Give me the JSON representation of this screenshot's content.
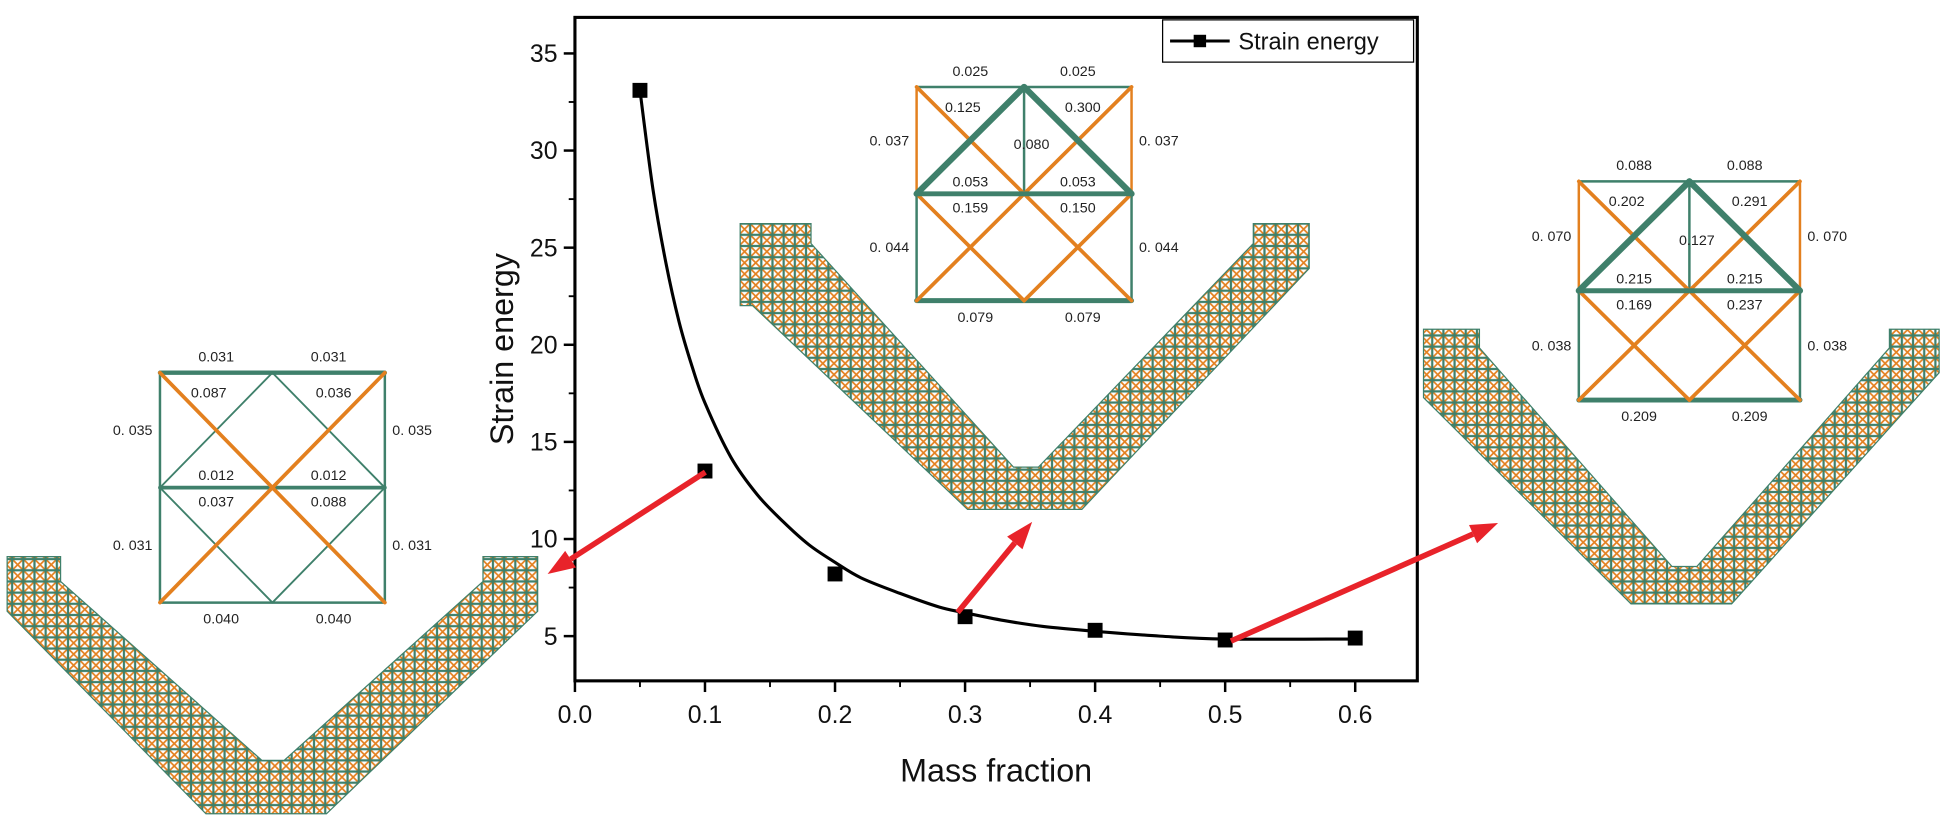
{
  "chart_data": {
    "type": "scatter",
    "title": "",
    "xlabel": "Mass fraction",
    "ylabel": "Strain energy",
    "xlim": [
      0,
      0.648
    ],
    "ylim": [
      2.7,
      36.9
    ],
    "xticks": [
      0.0,
      0.1,
      0.2,
      0.3,
      0.4,
      0.5,
      0.6
    ],
    "xtick_labels": [
      "0.0",
      "0.1",
      "0.2",
      "0.3",
      "0.4",
      "0.5",
      "0.6"
    ],
    "yticks": [
      5,
      10,
      15,
      20,
      25,
      30,
      35
    ],
    "ytick_labels": [
      "5",
      "10",
      "15",
      "20",
      "25",
      "30",
      "35"
    ],
    "grid": false,
    "legend_position": "top-right",
    "series": [
      {
        "name": "Strain energy",
        "marker": "square",
        "color": "#000000",
        "x": [
          0.05,
          0.1,
          0.2,
          0.3,
          0.4,
          0.5,
          0.6
        ],
        "y": [
          33.1,
          13.5,
          8.2,
          6.0,
          5.3,
          4.8,
          4.9
        ]
      }
    ],
    "fit_curve": {
      "color": "#000000",
      "x": [
        0.05,
        0.06,
        0.07,
        0.08,
        0.09,
        0.1,
        0.12,
        0.14,
        0.16,
        0.18,
        0.2,
        0.22,
        0.25,
        0.28,
        0.3,
        0.33,
        0.36,
        0.4,
        0.45,
        0.5,
        0.6
      ],
      "y": [
        33.1,
        28.0,
        24.2,
        21.2,
        18.9,
        17.0,
        14.2,
        12.3,
        10.9,
        9.7,
        8.8,
        8.0,
        7.2,
        6.5,
        6.2,
        5.8,
        5.5,
        5.25,
        5.0,
        4.85,
        4.85
      ]
    },
    "annotations": {
      "arrow_color": "#e8232a",
      "arrows": [
        {
          "from": [
            0.1,
            13.5
          ],
          "to": "left inset (mass fraction 0.1)"
        },
        {
          "from": [
            0.3,
            6.0
          ],
          "to": "middle inset (mass fraction 0.3)"
        },
        {
          "from": [
            0.5,
            4.8
          ],
          "to": "right inset (mass fraction 0.5)"
        }
      ]
    }
  },
  "colors": {
    "member_green": "#3f806b",
    "member_orange": "#e3801f",
    "axis": "#000000"
  },
  "insets": {
    "left": {
      "top": [
        "0.031",
        "0.031"
      ],
      "upper_diag": [
        "0.087",
        "0.036"
      ],
      "upper_side": [
        "0. 035",
        "0. 035"
      ],
      "middle_top": [
        "0.012",
        "0.012"
      ],
      "middle_bottom": [
        "0.037",
        "0.088"
      ],
      "lower_side": [
        "0. 031",
        "0. 031"
      ],
      "bottom": [
        "0.040",
        "0.040"
      ]
    },
    "middle": {
      "top": [
        "0.025",
        "0.025"
      ],
      "upper_diag": [
        "0.125",
        "0.300"
      ],
      "upper_side": [
        "0. 037",
        "0. 037"
      ],
      "center": "0.080",
      "middle_top": [
        "0.053",
        "0.053"
      ],
      "middle_bottom": [
        "0.159",
        "0.150"
      ],
      "lower_side": [
        "0. 044",
        "0. 044"
      ],
      "bottom": [
        "0.079",
        "0.079"
      ]
    },
    "right": {
      "top": [
        "0.088",
        "0.088"
      ],
      "upper_diag": [
        "0.202",
        "0.291"
      ],
      "upper_side": [
        "0. 070",
        "0. 070"
      ],
      "center": "0.127",
      "middle_top": [
        "0.215",
        "0.215"
      ],
      "middle_bottom": [
        "0.169",
        "0.237"
      ],
      "lower_side": [
        "0. 038",
        "0. 038"
      ],
      "bottom": [
        "0.209",
        "0.209"
      ]
    }
  }
}
